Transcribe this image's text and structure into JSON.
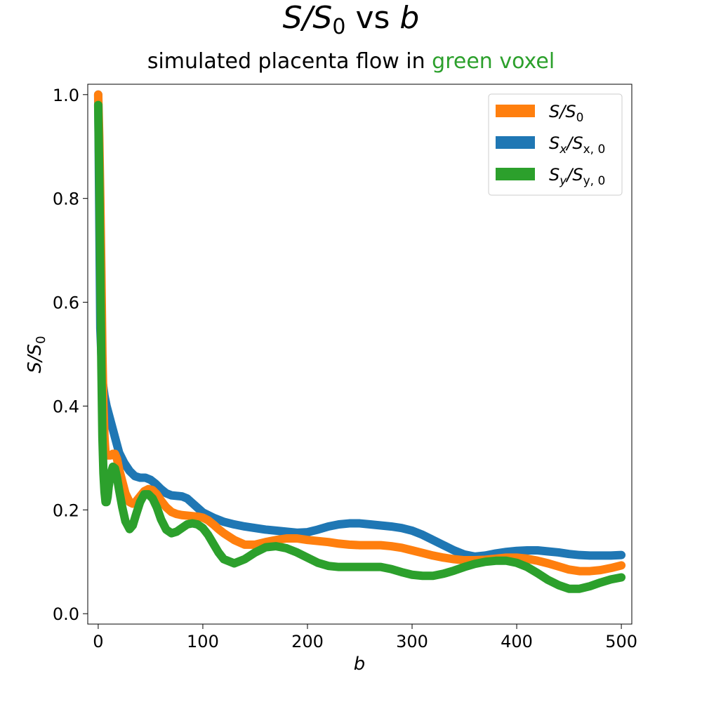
{
  "title": {
    "main": "S",
    "sep": "/",
    "main2": "S",
    "sub": "0",
    "rest": " vs ",
    "var": "b"
  },
  "subtitle": {
    "prefix": "simulated placenta flow in",
    "highlight": "green voxel",
    "highlight_color": "#2ca02c"
  },
  "chart_data": {
    "type": "scatter",
    "xlabel": "b",
    "ylabel": "S/S0",
    "xlim": [
      -10,
      510
    ],
    "ylim": [
      -0.02,
      1.02
    ],
    "xticks": [
      0,
      100,
      200,
      300,
      400,
      500
    ],
    "yticks": [
      0.0,
      0.2,
      0.4,
      0.6,
      0.8,
      1.0
    ],
    "xtick_labels": [
      "0",
      "100",
      "200",
      "300",
      "400",
      "500"
    ],
    "ytick_labels": [
      "0.0",
      "0.2",
      "0.4",
      "0.6",
      "0.8",
      "1.0"
    ],
    "legend_position": "top-right",
    "grid": false,
    "series": [
      {
        "name": "S_x/S_x,0",
        "color": "#1f77b4",
        "x": [
          0,
          2,
          4,
          6,
          8,
          12,
          16,
          20,
          25,
          30,
          35,
          40,
          45,
          50,
          55,
          60,
          65,
          70,
          75,
          80,
          85,
          90,
          95,
          100,
          110,
          120,
          130,
          140,
          150,
          160,
          170,
          180,
          190,
          200,
          210,
          220,
          230,
          240,
          250,
          260,
          270,
          280,
          290,
          300,
          310,
          320,
          330,
          340,
          350,
          360,
          370,
          380,
          390,
          400,
          410,
          420,
          430,
          440,
          450,
          460,
          470,
          480,
          490,
          500
        ],
        "y": [
          1.0,
          0.55,
          0.45,
          0.42,
          0.4,
          0.37,
          0.34,
          0.31,
          0.29,
          0.275,
          0.265,
          0.262,
          0.262,
          0.258,
          0.25,
          0.24,
          0.232,
          0.228,
          0.227,
          0.226,
          0.222,
          0.213,
          0.204,
          0.195,
          0.185,
          0.177,
          0.172,
          0.168,
          0.165,
          0.162,
          0.16,
          0.158,
          0.156,
          0.157,
          0.162,
          0.168,
          0.172,
          0.174,
          0.174,
          0.172,
          0.17,
          0.168,
          0.165,
          0.16,
          0.152,
          0.142,
          0.132,
          0.122,
          0.114,
          0.11,
          0.112,
          0.116,
          0.119,
          0.121,
          0.122,
          0.122,
          0.12,
          0.118,
          0.115,
          0.113,
          0.112,
          0.112,
          0.112,
          0.113
        ]
      },
      {
        "name": "S/S_0",
        "color": "#ff7f0e",
        "x": [
          0,
          1,
          2,
          3,
          4,
          5,
          6,
          7,
          8,
          9,
          10,
          12,
          14,
          16,
          18,
          20,
          23,
          26,
          30,
          33,
          36,
          40,
          44,
          48,
          52,
          56,
          60,
          65,
          70,
          75,
          80,
          85,
          90,
          95,
          100,
          105,
          110,
          115,
          120,
          130,
          140,
          150,
          160,
          170,
          180,
          190,
          200,
          210,
          220,
          230,
          240,
          250,
          260,
          270,
          280,
          290,
          300,
          310,
          320,
          330,
          340,
          350,
          360,
          370,
          380,
          390,
          400,
          410,
          420,
          430,
          440,
          450,
          460,
          470,
          480,
          490,
          500
        ],
        "y": [
          1.0,
          0.92,
          0.8,
          0.66,
          0.5,
          0.4,
          0.34,
          0.31,
          0.305,
          0.305,
          0.305,
          0.305,
          0.308,
          0.308,
          0.298,
          0.278,
          0.255,
          0.232,
          0.215,
          0.212,
          0.216,
          0.226,
          0.236,
          0.24,
          0.238,
          0.23,
          0.218,
          0.205,
          0.196,
          0.192,
          0.19,
          0.189,
          0.188,
          0.187,
          0.185,
          0.18,
          0.172,
          0.163,
          0.155,
          0.142,
          0.133,
          0.133,
          0.138,
          0.142,
          0.145,
          0.145,
          0.142,
          0.14,
          0.138,
          0.135,
          0.133,
          0.132,
          0.132,
          0.132,
          0.13,
          0.127,
          0.122,
          0.117,
          0.112,
          0.108,
          0.105,
          0.103,
          0.103,
          0.104,
          0.106,
          0.108,
          0.108,
          0.106,
          0.102,
          0.097,
          0.091,
          0.085,
          0.082,
          0.082,
          0.084,
          0.088,
          0.093
        ]
      },
      {
        "name": "S_y/S_y,0",
        "color": "#2ca02c",
        "x": [
          0,
          1,
          2,
          3,
          4,
          5,
          6,
          7,
          8,
          9,
          10,
          12,
          14,
          16,
          18,
          20,
          23,
          26,
          30,
          33,
          36,
          40,
          44,
          48,
          52,
          56,
          60,
          65,
          70,
          75,
          80,
          85,
          90,
          95,
          100,
          105,
          110,
          115,
          120,
          130,
          140,
          150,
          160,
          170,
          180,
          190,
          200,
          210,
          220,
          230,
          240,
          250,
          260,
          270,
          280,
          290,
          300,
          310,
          320,
          330,
          340,
          350,
          360,
          370,
          380,
          390,
          400,
          410,
          420,
          430,
          440,
          450,
          460,
          470,
          480,
          490,
          500
        ],
        "y": [
          0.98,
          0.85,
          0.66,
          0.48,
          0.34,
          0.27,
          0.235,
          0.215,
          0.215,
          0.225,
          0.245,
          0.27,
          0.283,
          0.28,
          0.262,
          0.238,
          0.205,
          0.178,
          0.163,
          0.17,
          0.19,
          0.215,
          0.23,
          0.23,
          0.222,
          0.205,
          0.182,
          0.162,
          0.155,
          0.158,
          0.165,
          0.172,
          0.174,
          0.172,
          0.165,
          0.152,
          0.135,
          0.118,
          0.105,
          0.097,
          0.105,
          0.118,
          0.128,
          0.13,
          0.126,
          0.118,
          0.108,
          0.098,
          0.092,
          0.09,
          0.09,
          0.09,
          0.09,
          0.09,
          0.086,
          0.08,
          0.075,
          0.073,
          0.073,
          0.077,
          0.083,
          0.09,
          0.096,
          0.1,
          0.102,
          0.102,
          0.098,
          0.09,
          0.078,
          0.065,
          0.055,
          0.048,
          0.048,
          0.053,
          0.06,
          0.066,
          0.07
        ]
      }
    ],
    "legend": [
      {
        "label_main": "S/S",
        "label_sub": "0",
        "color": "#ff7f0e"
      },
      {
        "label_main": "S",
        "label_sub1": "x",
        "label_mid": "/S",
        "label_sub2": "x, 0",
        "color": "#1f77b4"
      },
      {
        "label_main": "S",
        "label_sub1": "y",
        "label_mid": "/S",
        "label_sub2": "y, 0",
        "color": "#2ca02c"
      }
    ]
  }
}
